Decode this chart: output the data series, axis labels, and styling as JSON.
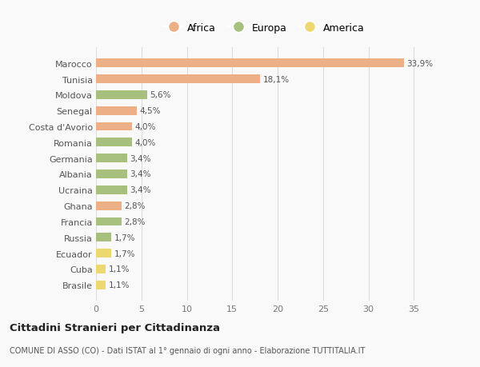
{
  "categories": [
    "Marocco",
    "Tunisia",
    "Moldova",
    "Senegal",
    "Costa d'Avorio",
    "Romania",
    "Germania",
    "Albania",
    "Ucraina",
    "Ghana",
    "Francia",
    "Russia",
    "Ecuador",
    "Cuba",
    "Brasile"
  ],
  "values": [
    33.9,
    18.1,
    5.6,
    4.5,
    4.0,
    4.0,
    3.4,
    3.4,
    3.4,
    2.8,
    2.8,
    1.7,
    1.7,
    1.1,
    1.1
  ],
  "labels": [
    "33,9%",
    "18,1%",
    "5,6%",
    "4,5%",
    "4,0%",
    "4,0%",
    "3,4%",
    "3,4%",
    "3,4%",
    "2,8%",
    "2,8%",
    "1,7%",
    "1,7%",
    "1,1%",
    "1,1%"
  ],
  "continent": [
    "Africa",
    "Africa",
    "Europa",
    "Africa",
    "Africa",
    "Europa",
    "Europa",
    "Europa",
    "Europa",
    "Africa",
    "Europa",
    "Europa",
    "America",
    "America",
    "America"
  ],
  "colors": {
    "Africa": "#EDAF85",
    "Europa": "#A8C07E",
    "America": "#EDD870"
  },
  "legend": [
    "Africa",
    "Europa",
    "America"
  ],
  "legend_colors": [
    "#EDAF85",
    "#A8C07E",
    "#EDD870"
  ],
  "title": "Cittadini Stranieri per Cittadinanza",
  "subtitle": "COMUNE DI ASSO (CO) - Dati ISTAT al 1° gennaio di ogni anno - Elaborazione TUTTITALIA.IT",
  "xlim": [
    0,
    37
  ],
  "xticks": [
    0,
    5,
    10,
    15,
    20,
    25,
    30,
    35
  ],
  "background_color": "#f9f9f9",
  "bar_height": 0.55
}
